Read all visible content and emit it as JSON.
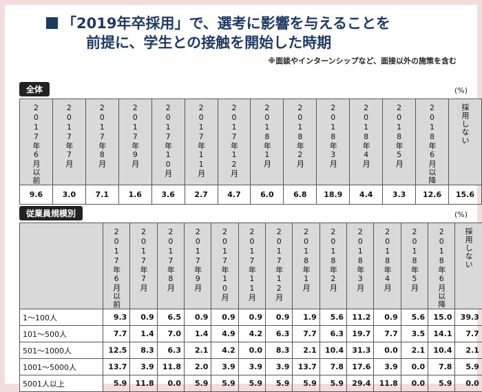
{
  "title": {
    "line1": "「2019年卒採用」で、選考に影響を与えることを",
    "line2": "前提に、学生との接触を開始した時期",
    "note": "※面談やインターンシップなど、面接以外の施策を含む"
  },
  "units": "(%)",
  "chart_data": [
    {
      "type": "table",
      "label": "全体",
      "categories": [
        "2017年6月以前",
        "2017年7月",
        "2017年8月",
        "2017年9月",
        "2017年10月",
        "2017年11月",
        "2017年12月",
        "2018年1月",
        "2018年2月",
        "2018年3月",
        "2018年4月",
        "2018年5月",
        "2018年6月以降",
        "採用しない"
      ],
      "values": [
        9.6,
        3.0,
        7.1,
        1.6,
        3.6,
        2.7,
        4.7,
        6.0,
        6.8,
        18.9,
        4.4,
        3.3,
        12.6,
        15.6
      ]
    },
    {
      "type": "table",
      "label": "従業員規模別",
      "categories": [
        "2017年6月以前",
        "2017年7月",
        "2017年8月",
        "2017年9月",
        "2017年10月",
        "2017年11月",
        "2017年12月",
        "2018年1月",
        "2018年2月",
        "2018年3月",
        "2018年4月",
        "2018年5月",
        "2018年6月以降",
        "採用しない"
      ],
      "series": [
        {
          "name": "1〜100人",
          "values": [
            9.3,
            0.9,
            6.5,
            0.9,
            0.9,
            0.9,
            0.9,
            1.9,
            5.6,
            11.2,
            0.9,
            5.6,
            15.0,
            39.3
          ]
        },
        {
          "name": "101〜500人",
          "values": [
            7.7,
            1.4,
            7.0,
            1.4,
            4.9,
            4.2,
            6.3,
            7.7,
            6.3,
            19.7,
            7.7,
            3.5,
            14.1,
            7.7
          ]
        },
        {
          "name": "501〜1000人",
          "values": [
            12.5,
            8.3,
            6.3,
            2.1,
            4.2,
            0.0,
            8.3,
            2.1,
            10.4,
            31.3,
            0.0,
            2.1,
            10.4,
            2.1
          ]
        },
        {
          "name": "1001〜5000人",
          "values": [
            13.7,
            3.9,
            11.8,
            2.0,
            3.9,
            3.9,
            3.9,
            13.7,
            7.8,
            17.6,
            3.9,
            0.0,
            7.8,
            5.9
          ]
        },
        {
          "name": "5001人以上",
          "values": [
            5.9,
            11.8,
            0.0,
            5.9,
            5.9,
            5.9,
            5.9,
            5.9,
            5.9,
            29.4,
            11.8,
            0.0,
            5.9,
            0.0
          ]
        }
      ]
    }
  ]
}
